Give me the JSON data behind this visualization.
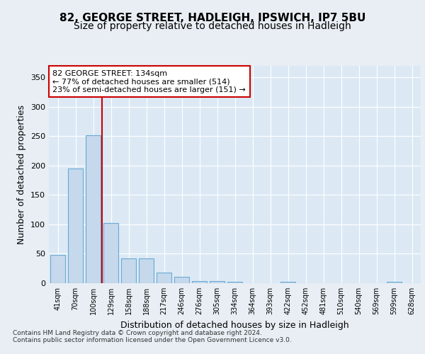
{
  "title": "82, GEORGE STREET, HADLEIGH, IPSWICH, IP7 5BU",
  "subtitle": "Size of property relative to detached houses in Hadleigh",
  "xlabel": "Distribution of detached houses by size in Hadleigh",
  "ylabel": "Number of detached properties",
  "bar_labels": [
    "41sqm",
    "70sqm",
    "100sqm",
    "129sqm",
    "158sqm",
    "188sqm",
    "217sqm",
    "246sqm",
    "276sqm",
    "305sqm",
    "334sqm",
    "364sqm",
    "393sqm",
    "422sqm",
    "452sqm",
    "481sqm",
    "510sqm",
    "540sqm",
    "569sqm",
    "599sqm",
    "628sqm"
  ],
  "bar_values": [
    48,
    195,
    252,
    102,
    42,
    42,
    18,
    11,
    4,
    4,
    2,
    0,
    0,
    2,
    0,
    0,
    0,
    0,
    0,
    2,
    0
  ],
  "bar_color": "#c5d8ec",
  "bar_edgecolor": "#6aaad4",
  "vline_x": 2.5,
  "vline_color": "#cc0000",
  "vline_linewidth": 1.5,
  "annotation_text": "82 GEORGE STREET: 134sqm\n← 77% of detached houses are smaller (514)\n23% of semi-detached houses are larger (151) →",
  "annotation_box_facecolor": "#ffffff",
  "annotation_box_edgecolor": "#cc0000",
  "ylim": [
    0,
    370
  ],
  "yticks": [
    0,
    50,
    100,
    150,
    200,
    250,
    300,
    350
  ],
  "bg_color": "#e8eef4",
  "plot_bg_color": "#dce9f5",
  "grid_color": "#ffffff",
  "footer_text": "Contains HM Land Registry data © Crown copyright and database right 2024.\nContains public sector information licensed under the Open Government Licence v3.0.",
  "title_fontsize": 11,
  "subtitle_fontsize": 10,
  "annotation_fontsize": 8,
  "xlabel_fontsize": 9,
  "ylabel_fontsize": 9,
  "tick_fontsize": 8,
  "xtick_fontsize": 7
}
